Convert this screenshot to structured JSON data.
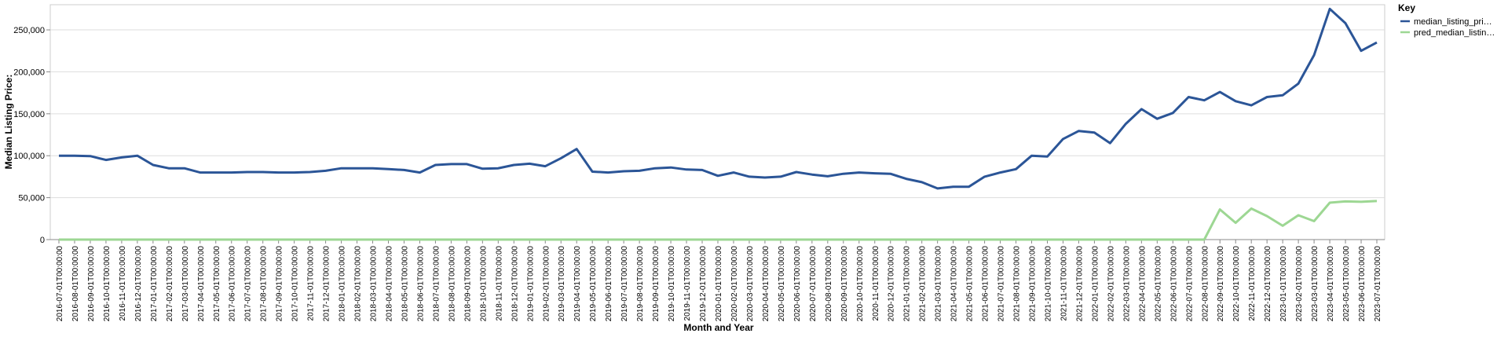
{
  "chart_data": {
    "type": "line",
    "x_label": "Month and Year",
    "y_label": "Median Listing Price:",
    "legend_title": "Key",
    "legend_position": "right",
    "grid": true,
    "categories": [
      "2016-07-01T00:00:00",
      "2016-08-01T00:00:00",
      "2016-09-01T00:00:00",
      "2016-10-01T00:00:00",
      "2016-11-01T00:00:00",
      "2016-12-01T00:00:00",
      "2017-01-01T00:00:00",
      "2017-02-01T00:00:00",
      "2017-03-01T00:00:00",
      "2017-04-01T00:00:00",
      "2017-05-01T00:00:00",
      "2017-06-01T00:00:00",
      "2017-07-01T00:00:00",
      "2017-08-01T00:00:00",
      "2017-09-01T00:00:00",
      "2017-10-01T00:00:00",
      "2017-11-01T00:00:00",
      "2017-12-01T00:00:00",
      "2018-01-01T00:00:00",
      "2018-02-01T00:00:00",
      "2018-03-01T00:00:00",
      "2018-04-01T00:00:00",
      "2018-05-01T00:00:00",
      "2018-06-01T00:00:00",
      "2018-07-01T00:00:00",
      "2018-08-01T00:00:00",
      "2018-09-01T00:00:00",
      "2018-10-01T00:00:00",
      "2018-11-01T00:00:00",
      "2018-12-01T00:00:00",
      "2019-01-01T00:00:00",
      "2019-02-01T00:00:00",
      "2019-03-01T00:00:00",
      "2019-04-01T00:00:00",
      "2019-05-01T00:00:00",
      "2019-06-01T00:00:00",
      "2019-07-01T00:00:00",
      "2019-08-01T00:00:00",
      "2019-09-01T00:00:00",
      "2019-10-01T00:00:00",
      "2019-11-01T00:00:00",
      "2019-12-01T00:00:00",
      "2020-01-01T00:00:00",
      "2020-02-01T00:00:00",
      "2020-03-01T00:00:00",
      "2020-04-01T00:00:00",
      "2020-05-01T00:00:00",
      "2020-06-01T00:00:00",
      "2020-07-01T00:00:00",
      "2020-08-01T00:00:00",
      "2020-09-01T00:00:00",
      "2020-10-01T00:00:00",
      "2020-11-01T00:00:00",
      "2020-12-01T00:00:00",
      "2021-01-01T00:00:00",
      "2021-02-01T00:00:00",
      "2021-03-01T00:00:00",
      "2021-04-01T00:00:00",
      "2021-05-01T00:00:00",
      "2021-06-01T00:00:00",
      "2021-07-01T00:00:00",
      "2021-08-01T00:00:00",
      "2021-09-01T00:00:00",
      "2021-10-01T00:00:00",
      "2021-11-01T00:00:00",
      "2021-12-01T00:00:00",
      "2022-01-01T00:00:00",
      "2022-02-01T00:00:00",
      "2022-03-01T00:00:00",
      "2022-04-01T00:00:00",
      "2022-05-01T00:00:00",
      "2022-06-01T00:00:00",
      "2022-07-01T00:00:00",
      "2022-08-01T00:00:00",
      "2022-09-01T00:00:00",
      "2022-10-01T00:00:00",
      "2022-11-01T00:00:00",
      "2022-12-01T00:00:00",
      "2023-01-01T00:00:00",
      "2023-02-01T00:00:00",
      "2023-03-01T00:00:00",
      "2023-04-01T00:00:00",
      "2023-05-01T00:00:00",
      "2023-06-01T00:00:00",
      "2023-07-01T00:00:00"
    ],
    "series": [
      {
        "name": "median_listing_pri…",
        "color": "#2b5597",
        "values": [
          100000,
          100000,
          99500,
          95000,
          98000,
          100000,
          89000,
          85000,
          85000,
          80000,
          80000,
          80000,
          80500,
          80500,
          80000,
          80000,
          80500,
          82000,
          85000,
          85000,
          85000,
          84000,
          83000,
          80000,
          89000,
          90000,
          90000,
          84500,
          85000,
          89000,
          90500,
          87500,
          97000,
          108000,
          81000,
          80000,
          81500,
          82000,
          85000,
          86000,
          83500,
          83000,
          76000,
          80000,
          75000,
          74000,
          75000,
          80500,
          77500,
          75500,
          78500,
          80000,
          79000,
          78500,
          72500,
          68500,
          61000,
          63000,
          63000,
          75000,
          80000,
          84000,
          100000,
          99000,
          120000,
          129500,
          127500,
          115000,
          138000,
          155500,
          144000,
          151000,
          170000,
          166000,
          176000,
          165000,
          160000,
          170000,
          172000,
          186000,
          220000,
          275000,
          258000,
          225000,
          235000
        ]
      },
      {
        "name": "pred_median_listin…",
        "color": "#9dd793",
        "values": [
          0,
          0,
          0,
          0,
          0,
          0,
          0,
          0,
          0,
          0,
          0,
          0,
          0,
          0,
          0,
          0,
          0,
          0,
          0,
          0,
          0,
          0,
          0,
          0,
          0,
          0,
          0,
          0,
          0,
          0,
          0,
          0,
          0,
          0,
          0,
          0,
          0,
          0,
          0,
          0,
          0,
          0,
          0,
          0,
          0,
          0,
          0,
          0,
          0,
          0,
          0,
          0,
          0,
          0,
          0,
          0,
          0,
          0,
          0,
          0,
          0,
          0,
          0,
          0,
          0,
          0,
          0,
          0,
          0,
          0,
          0,
          0,
          0,
          0,
          36000,
          20000,
          37000,
          28000,
          16500,
          29000,
          22000,
          44000,
          45500,
          45000,
          46000
        ]
      }
    ],
    "ylim": [
      0,
      280000
    ],
    "yticks": [
      0,
      {
        "value": 50000,
        "label": "50,000"
      },
      {
        "value": 100000,
        "label": "100,000"
      },
      {
        "value": 150000,
        "label": "150,000"
      },
      {
        "value": 200000,
        "label": "200,000"
      },
      {
        "value": 250000,
        "label": "250,000"
      }
    ]
  }
}
